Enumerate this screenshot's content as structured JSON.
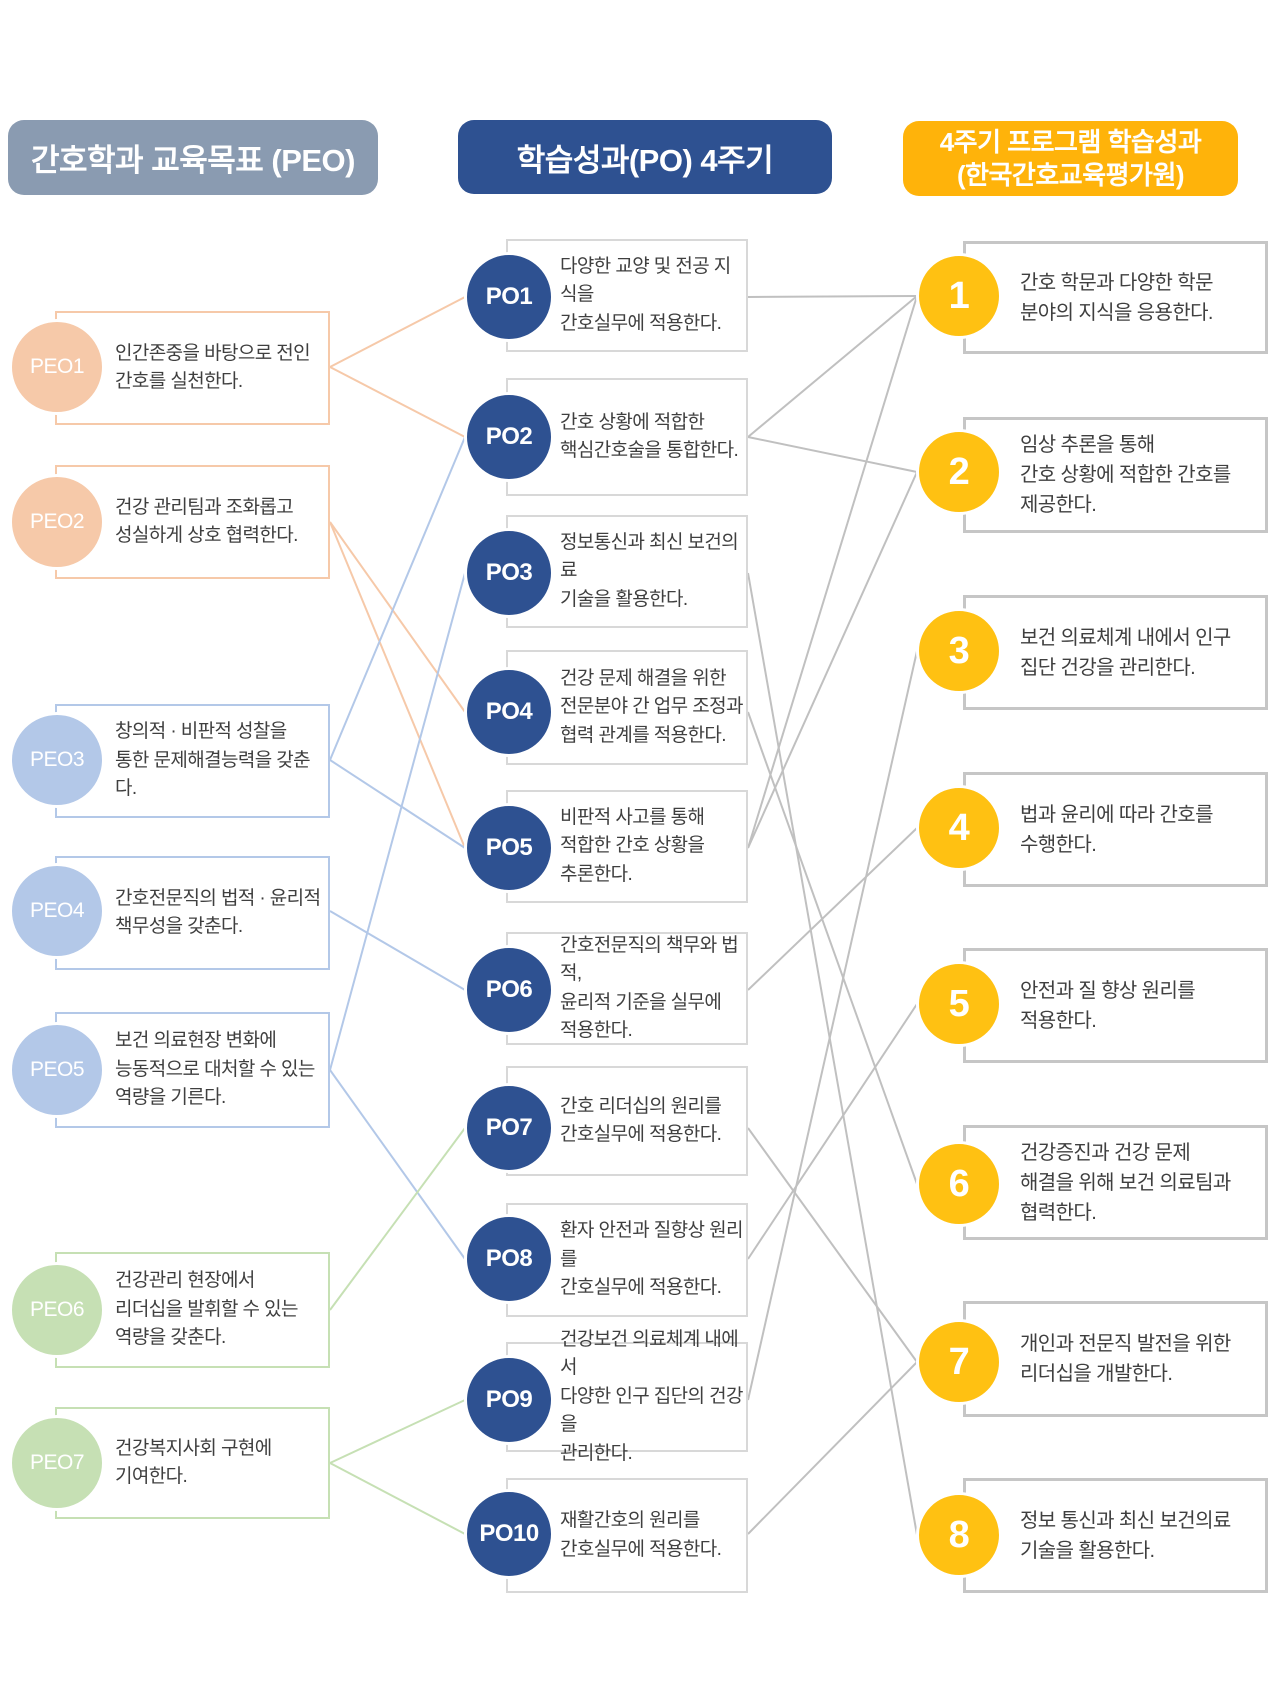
{
  "columns": {
    "peo": {
      "header": "간호학과 교육목표 (PEO)",
      "items": [
        {
          "id": "PEO1",
          "label": "PEO1",
          "group": "peach",
          "text": "인간존중을 바탕으로 전인\n간호를 실천한다."
        },
        {
          "id": "PEO2",
          "label": "PEO2",
          "group": "peach",
          "text": "건강 관리팀과 조화롭고\n성실하게 상호 협력한다."
        },
        {
          "id": "PEO3",
          "label": "PEO3",
          "group": "blue",
          "text": "창의적 · 비판적 성찰을\n통한 문제해결능력을 갖춘다."
        },
        {
          "id": "PEO4",
          "label": "PEO4",
          "group": "blue",
          "text": "간호전문직의 법적 · 윤리적\n책무성을 갖춘다."
        },
        {
          "id": "PEO5",
          "label": "PEO5",
          "group": "blue",
          "text": "보건 의료현장 변화에\n능동적으로 대처할 수 있는\n역량을 기른다."
        },
        {
          "id": "PEO6",
          "label": "PEO6",
          "group": "green",
          "text": "건강관리 현장에서\n리더십을 발휘할 수 있는\n역량을 갖춘다."
        },
        {
          "id": "PEO7",
          "label": "PEO7",
          "group": "green",
          "text": "건강복지사회 구현에\n기여한다."
        }
      ]
    },
    "po": {
      "header": "학습성과(PO) 4주기",
      "items": [
        {
          "id": "PO1",
          "label": "PO1",
          "text": "다양한 교양 및 전공 지식을\n간호실무에 적용한다."
        },
        {
          "id": "PO2",
          "label": "PO2",
          "text": "간호 상황에 적합한\n핵심간호술을 통합한다."
        },
        {
          "id": "PO3",
          "label": "PO3",
          "text": "정보통신과 최신 보건의료\n기술을 활용한다."
        },
        {
          "id": "PO4",
          "label": "PO4",
          "text": "건강 문제 해결을 위한\n전문분야 간 업무 조정과\n협력 관계를 적용한다."
        },
        {
          "id": "PO5",
          "label": "PO5",
          "text": "비판적 사고를 통해\n적합한 간호 상황을\n추론한다."
        },
        {
          "id": "PO6",
          "label": "PO6",
          "text": "간호전문직의 책무와 법적,\n윤리적 기준을 실무에\n적용한다."
        },
        {
          "id": "PO7",
          "label": "PO7",
          "text": "간호 리더십의 원리를\n간호실무에 적용한다."
        },
        {
          "id": "PO8",
          "label": "PO8",
          "text": "환자 안전과 질향상 원리를\n간호실무에 적용한다."
        },
        {
          "id": "PO9",
          "label": "PO9",
          "text": "건강보건 의료체계 내에서\n다양한 인구 집단의 건강을\n관리한다."
        },
        {
          "id": "PO10",
          "label": "PO10",
          "text": "재활간호의 원리를\n간호실무에 적용한다."
        }
      ]
    },
    "program": {
      "header_line1": "4주기 프로그램 학습성과",
      "header_line2": "(한국간호교육평가원)",
      "items": [
        {
          "id": "N1",
          "label": "1",
          "text": "간호 학문과 다양한 학문\n분야의 지식을 응용한다."
        },
        {
          "id": "N2",
          "label": "2",
          "text": "임상 추론을 통해\n간호 상황에 적합한 간호를\n제공한다."
        },
        {
          "id": "N3",
          "label": "3",
          "text": "보건 의료체계 내에서 인구\n집단 건강을 관리한다."
        },
        {
          "id": "N4",
          "label": "4",
          "text": "법과 윤리에 따라 간호를\n수행한다."
        },
        {
          "id": "N5",
          "label": "5",
          "text": "안전과 질 향상 원리를\n적용한다."
        },
        {
          "id": "N6",
          "label": "6",
          "text": "건강증진과 건강 문제\n해결을 위해 보건 의료팀과\n협력한다."
        },
        {
          "id": "N7",
          "label": "7",
          "text": "개인과 전문직 발전을 위한\n리더십을 개발한다."
        },
        {
          "id": "N8",
          "label": "8",
          "text": "정보 통신과 최신 보건의료\n기술을 활용한다."
        }
      ]
    }
  },
  "connections": {
    "peo_to_po": [
      {
        "from": "PEO1",
        "to": "PO1",
        "color": "peach"
      },
      {
        "from": "PEO1",
        "to": "PO2",
        "color": "peach"
      },
      {
        "from": "PEO2",
        "to": "PO4",
        "color": "peach"
      },
      {
        "from": "PEO2",
        "to": "PO5",
        "color": "peach"
      },
      {
        "from": "PEO3",
        "to": "PO2",
        "color": "blue"
      },
      {
        "from": "PEO3",
        "to": "PO5",
        "color": "blue"
      },
      {
        "from": "PEO4",
        "to": "PO6",
        "color": "blue"
      },
      {
        "from": "PEO5",
        "to": "PO3",
        "color": "blue"
      },
      {
        "from": "PEO5",
        "to": "PO8",
        "color": "blue"
      },
      {
        "from": "PEO6",
        "to": "PO7",
        "color": "green"
      },
      {
        "from": "PEO7",
        "to": "PO9",
        "color": "green"
      },
      {
        "from": "PEO7",
        "to": "PO10",
        "color": "green"
      }
    ],
    "po_to_program": [
      {
        "from": "PO1",
        "to": "N1"
      },
      {
        "from": "PO2",
        "to": "N1"
      },
      {
        "from": "PO5",
        "to": "N1"
      },
      {
        "from": "PO2",
        "to": "N2"
      },
      {
        "from": "PO5",
        "to": "N2"
      },
      {
        "from": "PO9",
        "to": "N3"
      },
      {
        "from": "PO6",
        "to": "N4"
      },
      {
        "from": "PO8",
        "to": "N5"
      },
      {
        "from": "PO4",
        "to": "N6"
      },
      {
        "from": "PO7",
        "to": "N7"
      },
      {
        "from": "PO10",
        "to": "N7"
      },
      {
        "from": "PO3",
        "to": "N8"
      }
    ]
  },
  "colors": {
    "peach": "#F6C9A9",
    "blue": "#B3C8E8",
    "green": "#C6E0B4",
    "po_circle": "#2E5191",
    "program_circle": "#FFC112",
    "header_peo_bg": "#8A9BB1",
    "header_po_bg": "#2E5191",
    "header_program_bg": "#FFB30A",
    "gray_line": "#C0C0C0",
    "po_box_border": "#D8D8D8",
    "program_box_border": "#C6C6C6",
    "text": "#3F3F3F"
  }
}
